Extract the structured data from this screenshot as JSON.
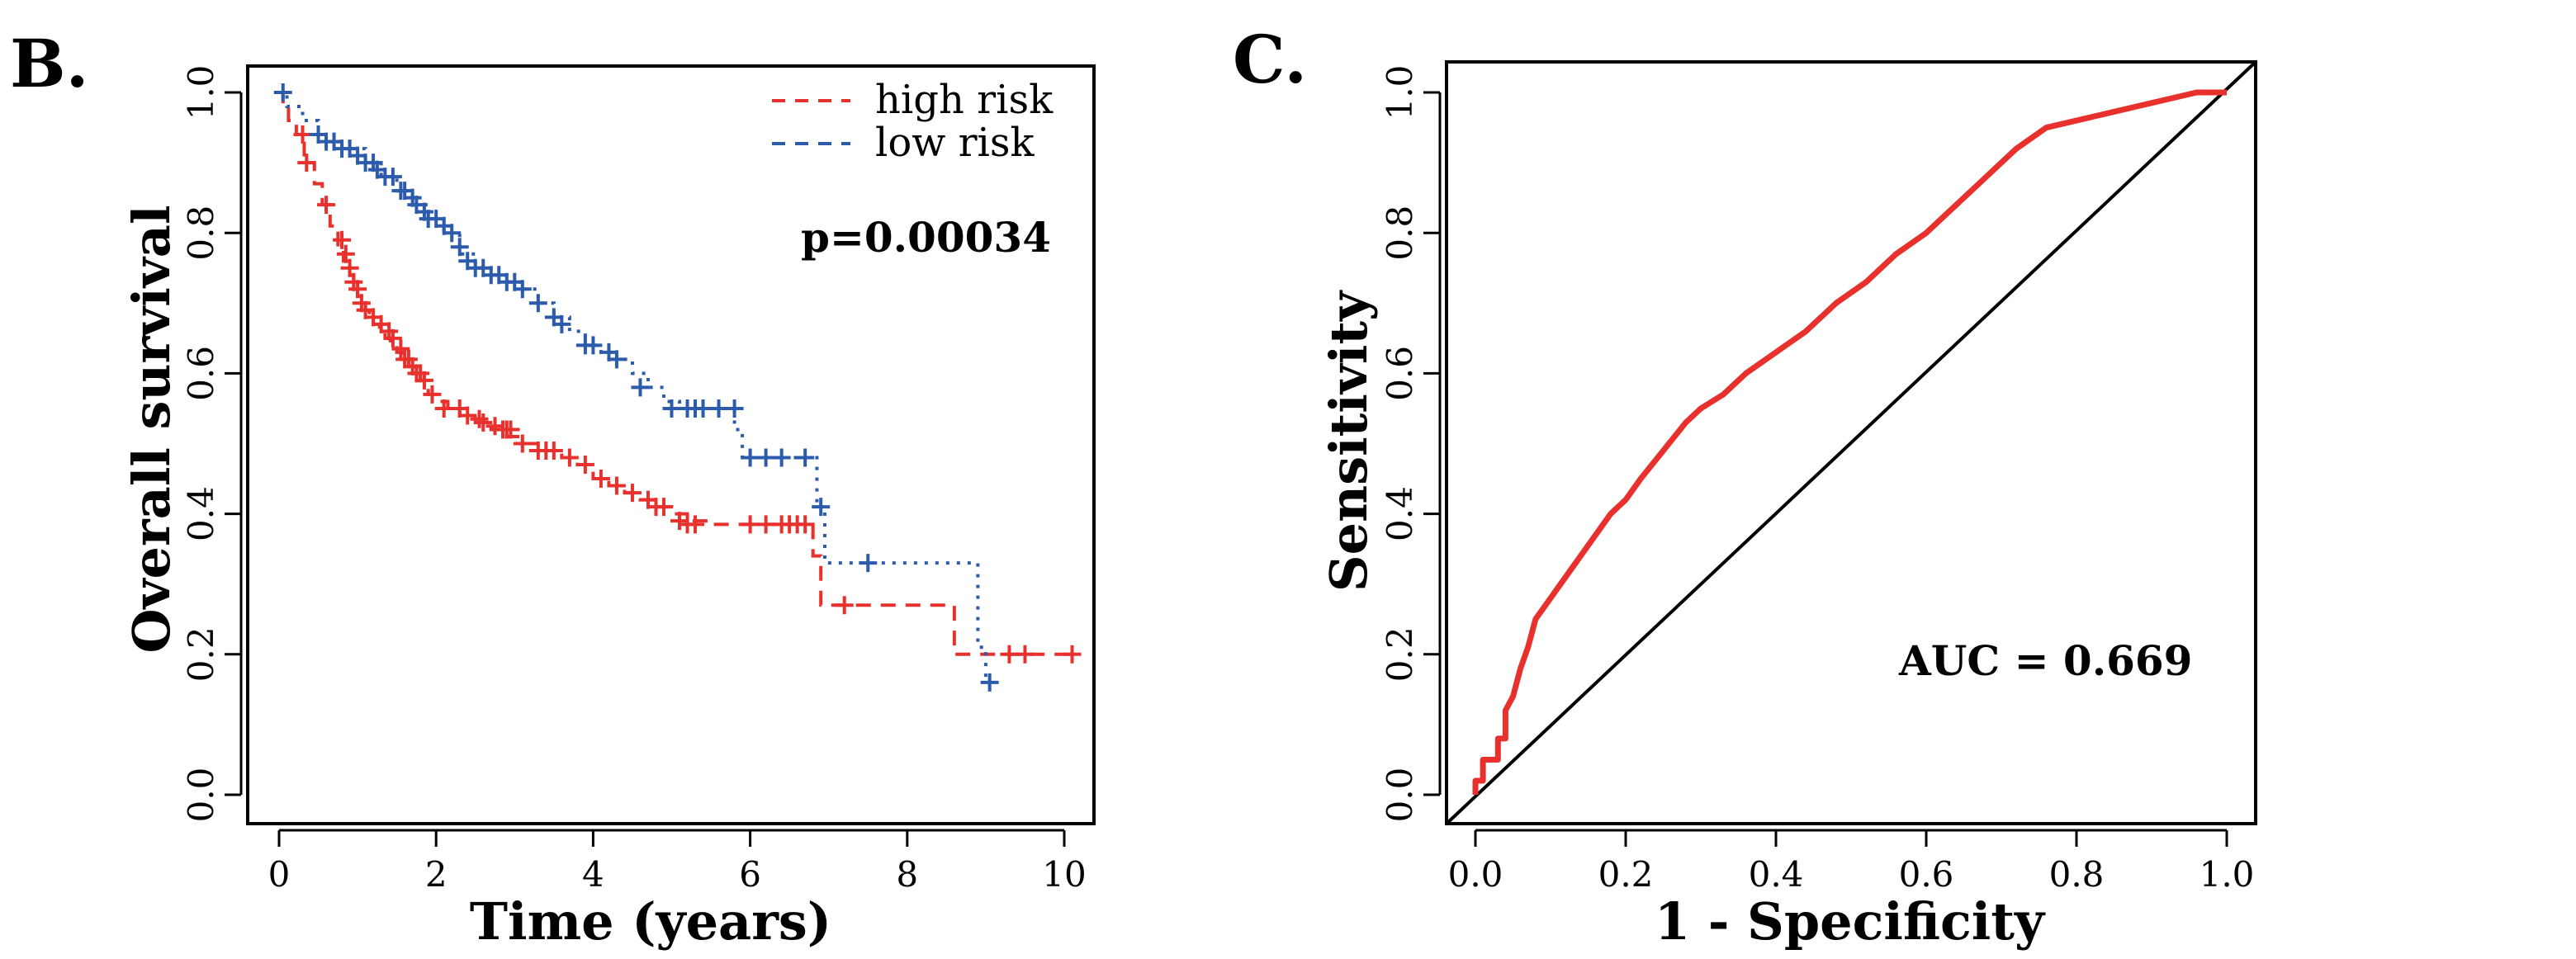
{
  "colors": {
    "high": "#e8312c",
    "low": "#2c5bab",
    "axis": "#000000"
  },
  "chart_data": [
    {
      "type": "line",
      "panel": "B.",
      "title": "",
      "xlabel": "Time (years)",
      "ylabel": "Overall survival",
      "xlim": [
        0,
        10
      ],
      "ylim": [
        0,
        1
      ],
      "xticks": [
        0,
        2,
        4,
        6,
        8,
        10
      ],
      "xtick_labels": [
        "0",
        "2",
        "4",
        "6",
        "8",
        "10"
      ],
      "yticks": [
        0,
        0.2,
        0.4,
        0.6,
        0.8,
        1.0
      ],
      "ytick_labels": [
        "0.0",
        "0.2",
        "0.4",
        "0.6",
        "0.8",
        "1.0"
      ],
      "legend": {
        "position": "top-right",
        "entries": [
          "high risk",
          "low risk"
        ]
      },
      "annotation": "p=0.00034",
      "series": [
        {
          "name": "high risk",
          "style": "dashed",
          "color_key": "high",
          "x": [
            0,
            0.05,
            0.12,
            0.22,
            0.32,
            0.45,
            0.55,
            0.65,
            0.75,
            0.82,
            0.9,
            0.95,
            1.0,
            1.05,
            1.1,
            1.15,
            1.2,
            1.28,
            1.35,
            1.42,
            1.5,
            1.58,
            1.65,
            1.72,
            1.8,
            1.9,
            2.0,
            2.15,
            2.3,
            2.5,
            2.7,
            2.9,
            3.1,
            3.3,
            3.6,
            3.8,
            4.0,
            4.2,
            4.4,
            4.6,
            4.8,
            5.0,
            5.2,
            5.5,
            6.0,
            6.5,
            6.8,
            6.9,
            7.5,
            8.5,
            8.6,
            9.0,
            10.1
          ],
          "values": [
            1.0,
            0.98,
            0.96,
            0.94,
            0.9,
            0.87,
            0.84,
            0.81,
            0.78,
            0.76,
            0.74,
            0.72,
            0.71,
            0.7,
            0.69,
            0.68,
            0.67,
            0.66,
            0.65,
            0.64,
            0.63,
            0.62,
            0.61,
            0.6,
            0.59,
            0.57,
            0.56,
            0.55,
            0.54,
            0.53,
            0.52,
            0.51,
            0.5,
            0.49,
            0.48,
            0.47,
            0.45,
            0.44,
            0.43,
            0.42,
            0.41,
            0.4,
            0.39,
            0.385,
            0.385,
            0.385,
            0.34,
            0.27,
            0.27,
            0.27,
            0.2,
            0.2,
            0.2
          ],
          "censor_x": [
            0.3,
            0.35,
            0.6,
            0.8,
            0.85,
            0.9,
            0.95,
            1.0,
            1.05,
            1.1,
            1.2,
            1.3,
            1.4,
            1.45,
            1.55,
            1.6,
            1.65,
            1.7,
            1.75,
            1.8,
            1.85,
            1.95,
            2.1,
            2.3,
            2.4,
            2.55,
            2.6,
            2.75,
            2.85,
            2.9,
            2.95,
            3.1,
            3.3,
            3.4,
            3.5,
            3.7,
            3.9,
            4.1,
            4.3,
            4.5,
            4.7,
            4.8,
            4.9,
            5.1,
            5.2,
            5.3,
            6.0,
            6.2,
            6.4,
            6.5,
            6.6,
            6.7,
            7.2,
            9.3,
            9.5,
            10.1
          ],
          "censor_y": [
            0.94,
            0.9,
            0.84,
            0.79,
            0.77,
            0.75,
            0.73,
            0.72,
            0.7,
            0.69,
            0.68,
            0.67,
            0.66,
            0.65,
            0.635,
            0.62,
            0.62,
            0.61,
            0.6,
            0.6,
            0.59,
            0.57,
            0.55,
            0.55,
            0.54,
            0.535,
            0.53,
            0.525,
            0.52,
            0.52,
            0.52,
            0.5,
            0.49,
            0.49,
            0.49,
            0.48,
            0.47,
            0.45,
            0.44,
            0.43,
            0.42,
            0.41,
            0.41,
            0.39,
            0.385,
            0.385,
            0.385,
            0.385,
            0.385,
            0.385,
            0.385,
            0.385,
            0.27,
            0.2,
            0.2,
            0.2
          ]
        },
        {
          "name": "low risk",
          "style": "dotted",
          "color_key": "low",
          "x": [
            0,
            0.1,
            0.3,
            0.5,
            0.7,
            0.9,
            1.1,
            1.3,
            1.5,
            1.7,
            1.9,
            2.1,
            2.3,
            2.5,
            2.7,
            2.9,
            3.1,
            3.3,
            3.5,
            3.7,
            3.9,
            4.1,
            4.3,
            4.5,
            4.7,
            4.9,
            5.1,
            5.3,
            5.5,
            5.7,
            5.8,
            5.9,
            6.2,
            6.5,
            6.8,
            6.85,
            6.95,
            7.5,
            8.6,
            8.9,
            9.0
          ],
          "values": [
            1.0,
            0.98,
            0.96,
            0.94,
            0.93,
            0.92,
            0.9,
            0.88,
            0.86,
            0.84,
            0.82,
            0.8,
            0.77,
            0.75,
            0.74,
            0.73,
            0.72,
            0.7,
            0.68,
            0.66,
            0.64,
            0.63,
            0.62,
            0.6,
            0.58,
            0.56,
            0.55,
            0.55,
            0.55,
            0.55,
            0.52,
            0.48,
            0.48,
            0.48,
            0.48,
            0.41,
            0.33,
            0.33,
            0.33,
            0.21,
            0.16
          ],
          "censor_x": [
            0.05,
            0.5,
            0.6,
            0.7,
            0.8,
            0.9,
            1.0,
            1.1,
            1.2,
            1.25,
            1.35,
            1.45,
            1.55,
            1.6,
            1.7,
            1.75,
            1.85,
            1.9,
            2.0,
            2.1,
            2.2,
            2.3,
            2.4,
            2.5,
            2.6,
            2.7,
            2.8,
            2.9,
            3.0,
            3.1,
            3.3,
            3.5,
            3.6,
            3.9,
            4.0,
            4.2,
            4.3,
            4.6,
            5.0,
            5.2,
            5.3,
            5.4,
            5.6,
            5.8,
            6.0,
            6.2,
            6.4,
            6.7,
            6.9,
            7.5,
            9.05
          ],
          "censor_y": [
            1.0,
            0.94,
            0.93,
            0.93,
            0.92,
            0.92,
            0.91,
            0.9,
            0.9,
            0.89,
            0.88,
            0.88,
            0.86,
            0.86,
            0.85,
            0.84,
            0.83,
            0.82,
            0.82,
            0.81,
            0.8,
            0.78,
            0.76,
            0.75,
            0.75,
            0.74,
            0.74,
            0.73,
            0.73,
            0.72,
            0.7,
            0.68,
            0.67,
            0.64,
            0.64,
            0.63,
            0.62,
            0.58,
            0.55,
            0.55,
            0.55,
            0.55,
            0.55,
            0.55,
            0.48,
            0.48,
            0.48,
            0.48,
            0.41,
            0.33,
            0.16
          ]
        }
      ]
    },
    {
      "type": "line",
      "panel": "C.",
      "title": "",
      "xlabel": "1 - Specificity",
      "ylabel": "Sensitivity",
      "xlim": [
        0,
        1
      ],
      "ylim": [
        0,
        1
      ],
      "xticks": [
        0,
        0.2,
        0.4,
        0.6,
        0.8,
        1.0
      ],
      "xtick_labels": [
        "0.0",
        "0.2",
        "0.4",
        "0.6",
        "0.8",
        "1.0"
      ],
      "yticks": [
        0,
        0.2,
        0.4,
        0.6,
        0.8,
        1.0
      ],
      "ytick_labels": [
        "0.0",
        "0.2",
        "0.4",
        "0.6",
        "0.8",
        "1.0"
      ],
      "annotation": "AUC =  0.669",
      "series": [
        {
          "name": "ROC",
          "color_key": "high",
          "x": [
            0,
            0,
            0.01,
            0.01,
            0.03,
            0.03,
            0.04,
            0.04,
            0.05,
            0.06,
            0.07,
            0.08,
            0.1,
            0.12,
            0.14,
            0.16,
            0.18,
            0.2,
            0.22,
            0.25,
            0.28,
            0.3,
            0.33,
            0.36,
            0.4,
            0.44,
            0.48,
            0.52,
            0.56,
            0.6,
            0.64,
            0.68,
            0.72,
            0.76,
            0.8,
            0.84,
            0.88,
            0.92,
            0.96,
            0.98,
            1.0
          ],
          "values": [
            0,
            0.02,
            0.02,
            0.05,
            0.05,
            0.08,
            0.08,
            0.12,
            0.14,
            0.18,
            0.21,
            0.25,
            0.28,
            0.31,
            0.34,
            0.37,
            0.4,
            0.42,
            0.45,
            0.49,
            0.53,
            0.55,
            0.57,
            0.6,
            0.63,
            0.66,
            0.7,
            0.73,
            0.77,
            0.8,
            0.84,
            0.88,
            0.92,
            0.95,
            0.96,
            0.97,
            0.98,
            0.99,
            1.0,
            1.0,
            1.0
          ]
        }
      ],
      "reference_line": {
        "x": [
          0,
          1
        ],
        "values": [
          0,
          1
        ]
      }
    }
  ]
}
